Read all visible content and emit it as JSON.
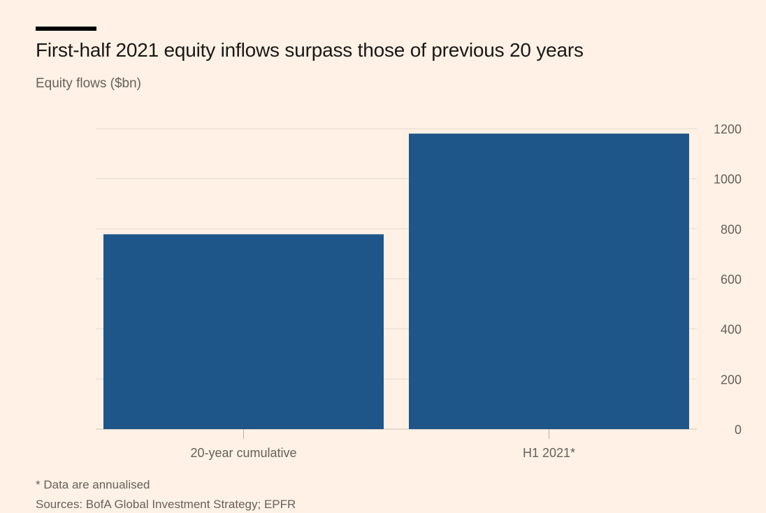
{
  "colors": {
    "background": "#fff1e5",
    "bar": "#1f5689",
    "gridline": "#e6d9ce",
    "axis_text": "#66605c",
    "title_text": "#1a1817"
  },
  "header": {
    "title": "First-half 2021 equity inflows surpass those of previous 20 years",
    "subtitle": "Equity flows ($bn)"
  },
  "chart_data": {
    "type": "bar",
    "categories": [
      "20-year cumulative",
      "H1 2021*"
    ],
    "values": [
      778,
      1180
    ],
    "ylim": [
      0,
      1200
    ],
    "yticks": [
      0,
      200,
      400,
      600,
      800,
      1000,
      1200
    ],
    "ytick_labels": [
      "0",
      "200",
      "400",
      "600",
      "800",
      "1000",
      "1200"
    ],
    "y_axis_side": "right",
    "grid": true
  },
  "footer": {
    "note": "* Data are annualised",
    "source": "Sources: BofA Global Investment Strategy; EPFR"
  }
}
